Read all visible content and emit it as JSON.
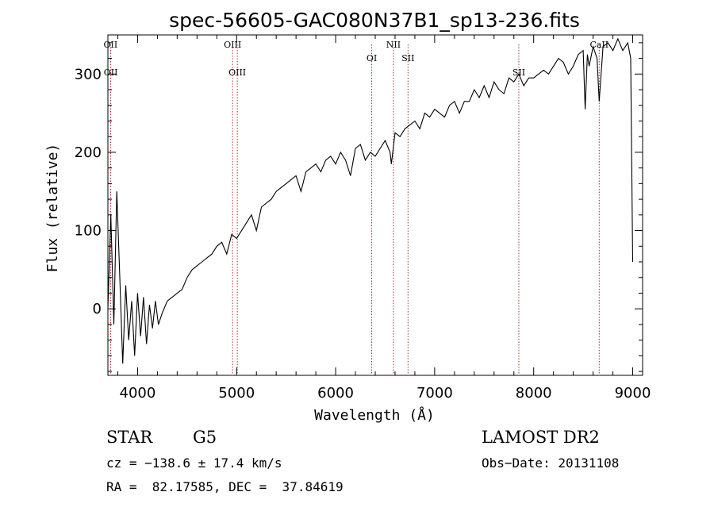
{
  "chart_data": {
    "type": "line",
    "title": "spec-56605-GAC080N37B1_sp13-236.fits",
    "xlabel": "Wavelength (Å)",
    "ylabel": "Flux (relative)",
    "xlim": [
      3700,
      9100
    ],
    "ylim": [
      -85,
      350
    ],
    "xticks": [
      4000,
      5000,
      6000,
      7000,
      8000,
      9000
    ],
    "yticks": [
      0,
      100,
      200,
      300
    ],
    "series": [
      {
        "name": "flux",
        "x": [
          3700,
          3730,
          3760,
          3790,
          3820,
          3850,
          3880,
          3910,
          3940,
          3970,
          4000,
          4030,
          4060,
          4090,
          4120,
          4150,
          4180,
          4210,
          4250,
          4300,
          4350,
          4400,
          4450,
          4500,
          4550,
          4600,
          4650,
          4700,
          4750,
          4800,
          4850,
          4900,
          4950,
          5000,
          5050,
          5100,
          5150,
          5200,
          5250,
          5300,
          5350,
          5400,
          5450,
          5500,
          5550,
          5600,
          5650,
          5700,
          5750,
          5800,
          5850,
          5900,
          5950,
          6000,
          6050,
          6100,
          6150,
          6200,
          6250,
          6300,
          6350,
          6400,
          6450,
          6500,
          6550,
          6563,
          6600,
          6650,
          6700,
          6750,
          6800,
          6850,
          6900,
          6950,
          7000,
          7050,
          7100,
          7150,
          7200,
          7250,
          7300,
          7350,
          7400,
          7450,
          7500,
          7550,
          7600,
          7650,
          7700,
          7750,
          7800,
          7850,
          7900,
          7950,
          8000,
          8050,
          8100,
          8150,
          8200,
          8250,
          8300,
          8350,
          8400,
          8450,
          8500,
          8520,
          8542,
          8560,
          8600,
          8640,
          8662,
          8700,
          8750,
          8800,
          8850,
          8900,
          8950,
          8980,
          9000
        ],
        "values": [
          0,
          120,
          -20,
          150,
          40,
          -70,
          30,
          -40,
          10,
          -60,
          20,
          -35,
          15,
          -45,
          5,
          -25,
          10,
          -20,
          -5,
          10,
          15,
          20,
          25,
          40,
          50,
          55,
          60,
          65,
          70,
          80,
          85,
          70,
          95,
          90,
          100,
          110,
          120,
          100,
          130,
          135,
          140,
          150,
          155,
          160,
          165,
          170,
          150,
          175,
          180,
          185,
          175,
          190,
          195,
          185,
          200,
          190,
          170,
          205,
          210,
          190,
          200,
          195,
          205,
          215,
          200,
          185,
          225,
          220,
          230,
          235,
          240,
          230,
          250,
          245,
          255,
          250,
          245,
          260,
          265,
          250,
          265,
          265,
          280,
          270,
          285,
          270,
          290,
          280,
          275,
          295,
          290,
          300,
          285,
          295,
          295,
          300,
          305,
          300,
          310,
          320,
          315,
          300,
          310,
          325,
          330,
          255,
          325,
          310,
          335,
          320,
          265,
          335,
          340,
          330,
          345,
          330,
          340,
          320,
          60
        ]
      }
    ],
    "line_markers": [
      {
        "label": "OII",
        "x": 3727,
        "row": "upper"
      },
      {
        "label": "OII",
        "x": 3729,
        "row": "lower"
      },
      {
        "label": "OIII",
        "x": 4959,
        "row": "upper"
      },
      {
        "label": "OIII",
        "x": 5007,
        "row": "lower"
      },
      {
        "label": "OI",
        "x": 6364,
        "row": "middle"
      },
      {
        "label": "NII",
        "x": 6584,
        "row": "upper"
      },
      {
        "label": "SII",
        "x": 6731,
        "row": "middle"
      },
      {
        "label": "SII",
        "x": 7850,
        "row": "lower"
      },
      {
        "label": "CaII",
        "x": 8662,
        "row": "upper"
      }
    ]
  },
  "info": {
    "object_type": "STAR",
    "subclass": "G5",
    "survey": "LAMOST DR2",
    "velocity": "cz = −138.6 ± 17.4 km/s",
    "obs_date": "Obs−Date: 20131108",
    "coords": "RA =  82.17585, DEC =  37.84619"
  },
  "colors": {
    "spectrum": "#000000",
    "marker": "#a0342d",
    "axis": "#000000"
  }
}
